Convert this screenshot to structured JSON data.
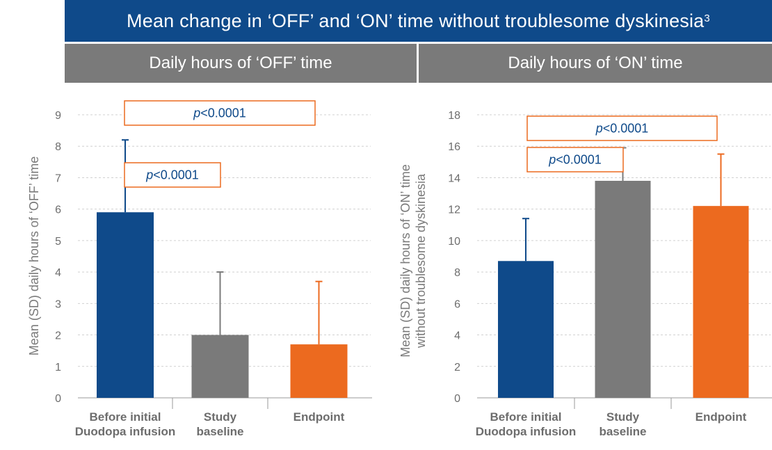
{
  "header": {
    "title": "Mean change in ‘OFF’ and ‘ON’ time without troublesome dyskinesia",
    "title_sup": "3",
    "left_panel": "Daily hours of ‘OFF’ time",
    "right_panel": "Daily hours of ‘ON’ time"
  },
  "colors": {
    "blue": "#0f4a8a",
    "gray": "#7a7a7a",
    "orange": "#ec6a1f",
    "pbox_border": "#ec6a1f"
  },
  "chart_data": [
    {
      "type": "bar",
      "ylabel": [
        "Mean (SD) daily hours of ‘OFF’ time"
      ],
      "ylim": [
        0,
        9
      ],
      "yticks": [
        0,
        1,
        2,
        3,
        4,
        5,
        6,
        7,
        8,
        9
      ],
      "categories": [
        [
          "Before initial",
          "Duodopa infusion"
        ],
        [
          "Study",
          "baseline"
        ],
        [
          "Endpoint"
        ]
      ],
      "values": [
        5.9,
        2.0,
        1.7
      ],
      "sd": [
        2.3,
        2.0,
        2.0
      ],
      "bar_colors": [
        "#0f4a8a",
        "#7a7a7a",
        "#ec6a1f"
      ],
      "grid": true,
      "p_values": [
        {
          "label": "p",
          "value": "<0.0001",
          "from": 0,
          "to": 2
        },
        {
          "label": "p",
          "value": "<0.0001",
          "from": 0,
          "to": 1
        }
      ]
    },
    {
      "type": "bar",
      "ylabel": [
        "Mean (SD) daily hours of ‘ON’ time",
        "without troublesome dyskinesia"
      ],
      "ylim": [
        0,
        18
      ],
      "yticks": [
        0,
        2,
        4,
        6,
        8,
        10,
        12,
        14,
        16,
        18
      ],
      "categories": [
        [
          "Before initial",
          "Duodopa infusion"
        ],
        [
          "Study",
          "baseline"
        ],
        [
          "Endpoint"
        ]
      ],
      "values": [
        8.7,
        13.8,
        12.2
      ],
      "sd": [
        2.7,
        2.1,
        3.3
      ],
      "bar_colors": [
        "#0f4a8a",
        "#7a7a7a",
        "#ec6a1f"
      ],
      "grid": true,
      "p_values": [
        {
          "label": "p",
          "value": "<0.0001",
          "from": 0,
          "to": 2
        },
        {
          "label": "p",
          "value": "<0.0001",
          "from": 0,
          "to": 1
        }
      ]
    }
  ]
}
